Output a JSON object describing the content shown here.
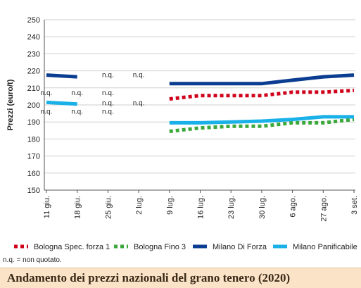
{
  "chart_data": {
    "type": "line",
    "title": "Andamento dei prezzi nazionali del grano tenero (2020)",
    "ylabel": "Prezzi (euro/t)",
    "ylim": [
      150,
      250
    ],
    "yticks": [
      150,
      160,
      170,
      180,
      190,
      200,
      210,
      220,
      230,
      240,
      250
    ],
    "categories": [
      "11 giu.",
      "18 giu.",
      "25 giu.",
      "2 lug.",
      "9 lug.",
      "16 lug.",
      "23 lug.",
      "30 lug.",
      "6 ago.",
      "27 ago.",
      "3 set."
    ],
    "grid": "horizontal",
    "legend_position": "bottom",
    "series": [
      {
        "name": "Bologna Spec. forza 1",
        "color": "#d0021b",
        "style": "dotted",
        "values": [
          null,
          null,
          null,
          null,
          203.5,
          205.5,
          205.5,
          205.5,
          207.5,
          207.5,
          208.5
        ]
      },
      {
        "name": "Bologna Fino 3",
        "color": "#3aa83a",
        "style": "dotted",
        "values": [
          null,
          null,
          null,
          null,
          184.5,
          186.5,
          187.5,
          187.5,
          189.5,
          189.5,
          191.5
        ]
      },
      {
        "name": "Milano Di Forza",
        "color": "#0b3d91",
        "style": "solid",
        "values": [
          217.5,
          216.5,
          null,
          null,
          212.5,
          212.5,
          212.5,
          212.5,
          214.5,
          216.5,
          217.5
        ]
      },
      {
        "name": "Milano Panificabile",
        "color": "#1ab0e8",
        "style": "solid",
        "values": [
          201.5,
          200.5,
          null,
          null,
          189.5,
          189.5,
          190,
          190.5,
          191.5,
          193,
          193
        ]
      }
    ],
    "annotations": [
      {
        "text": "n.q.",
        "category": "25 giu.",
        "y": 217.5
      },
      {
        "text": "n.q.",
        "category": "2 lug.",
        "y": 217.5
      },
      {
        "text": "n.q.",
        "category": "11 giu.",
        "y": 207
      },
      {
        "text": "n.q.",
        "category": "18 giu.",
        "y": 207
      },
      {
        "text": "n.q.",
        "category": "25 giu.",
        "y": 207
      },
      {
        "text": "n.q.",
        "category": "25 giu.",
        "y": 201
      },
      {
        "text": "n.q.",
        "category": "2 lug.",
        "y": 201
      },
      {
        "text": "n.q.",
        "category": "11 giu.",
        "y": 196
      },
      {
        "text": "n.q.",
        "category": "18 giu.",
        "y": 196
      },
      {
        "text": "n.q.",
        "category": "25 giu.",
        "y": 196
      }
    ]
  },
  "footnote": "n.q. = non quotato."
}
